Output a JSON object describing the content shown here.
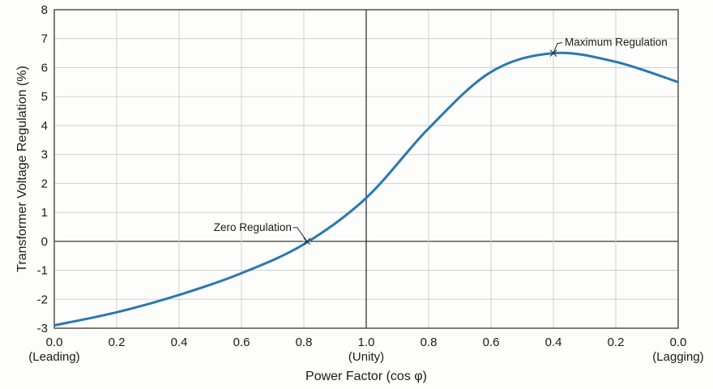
{
  "chart_data": {
    "type": "line",
    "title": "",
    "xlabel": "Power Factor (cos φ)",
    "ylabel": "Transformer Voltage Regulation (%)",
    "ylim": [
      -3,
      8
    ],
    "yticks": [
      "-3",
      "-2",
      "-1",
      "0",
      "1",
      "2",
      "3",
      "4",
      "5",
      "6",
      "7",
      "8"
    ],
    "xticks": [
      "0.0",
      "0.2",
      "0.4",
      "0.6",
      "0.8",
      "1.0",
      "0.8",
      "0.6",
      "0.4",
      "0.2",
      "0.0"
    ],
    "xtick_sublabels": {
      "0": "(Leading)",
      "5": "(Unity)",
      "10": "(Lagging)"
    },
    "grid": true,
    "legend": null,
    "series": [
      {
        "name": "Voltage Regulation",
        "color": "#2a78b0",
        "x_position": [
          0,
          1,
          2,
          3,
          4,
          5,
          6,
          7,
          8,
          9,
          10
        ],
        "x_labels": [
          "0.0 lead",
          "0.2 lead",
          "0.4 lead",
          "0.6 lead",
          "0.8 lead",
          "1.0",
          "0.8 lag",
          "0.6 lag",
          "0.4 lag",
          "0.2 lag",
          "0.0 lag"
        ],
        "values": [
          -2.9,
          -2.45,
          -1.85,
          -1.1,
          -0.1,
          1.5,
          3.9,
          5.85,
          6.5,
          6.2,
          5.5
        ]
      }
    ],
    "annotations": [
      {
        "text": "Zero Regulation",
        "x_position": 4.05,
        "value": 0
      },
      {
        "text": "Maximum Regulation",
        "x_position": 8.0,
        "value": 6.5
      }
    ]
  }
}
